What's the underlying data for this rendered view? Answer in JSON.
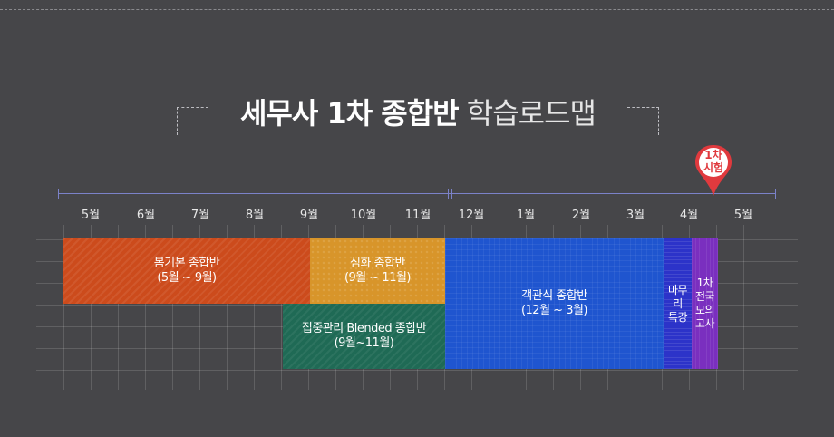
{
  "title": {
    "bold": "세무사 1차 종합반",
    "light": "학습로드맵"
  },
  "exam_pin": {
    "label": "1차\n시험",
    "color": "#e03a3e"
  },
  "months": [
    "5월",
    "6월",
    "7월",
    "8월",
    "9월",
    "10월",
    "11월",
    "12월",
    "1월",
    "2월",
    "3월",
    "4월",
    "5월"
  ],
  "courses": [
    {
      "label": "봄기본 종합반\n(5월 ~ 9월)",
      "color": "#cc4b1c"
    },
    {
      "label": "심화 종합반\n(9월 ~ 11월)",
      "color": "#d8952a"
    },
    {
      "label": "집중관리 Blended 종합반\n(9월~11월)",
      "color": "#1f6a55"
    },
    {
      "label": "객관식 종합반\n(12월 ~ 3월)",
      "color": "#1f55cf"
    },
    {
      "label": "마무리\n특강",
      "color": "#2c33c9"
    },
    {
      "label": "1차\n전국\n모의\n고사",
      "color": "#7a2fbf"
    }
  ],
  "colors": {
    "background": "#464649",
    "timeline": "#7b82c9"
  }
}
